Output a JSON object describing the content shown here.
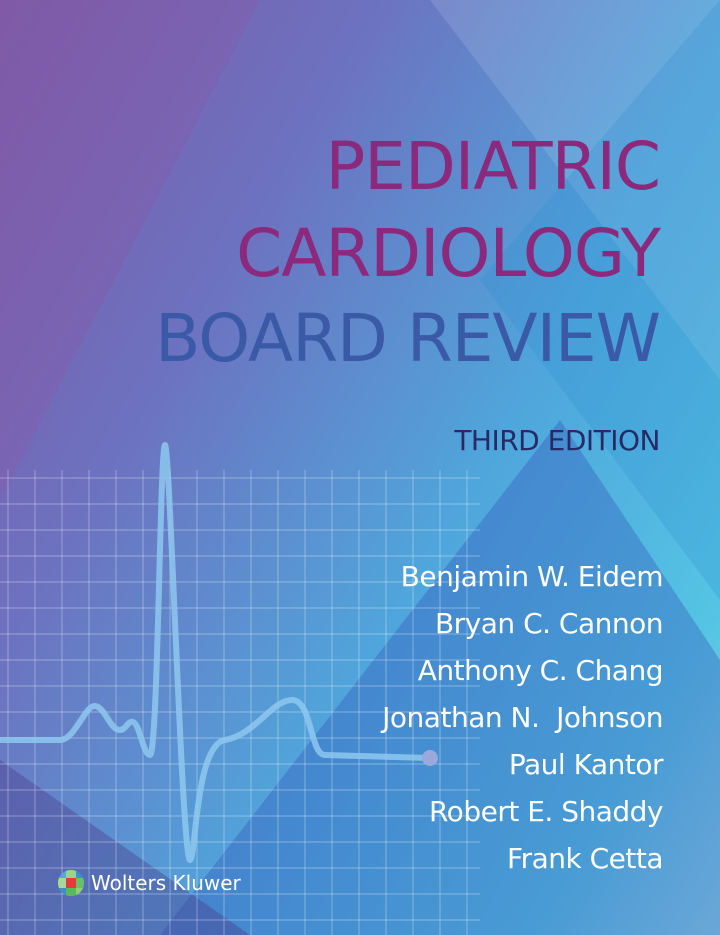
{
  "title": {
    "line1": "PEDIATRIC",
    "line2": "CARDIOLOGY",
    "line3": "BOARD REVIEW"
  },
  "edition": "THIRD EDITION",
  "authors": [
    "Benjamin W. Eidem",
    "Bryan C. Cannon",
    "Anthony C. Chang",
    "Jonathan N.  Johnson",
    "Paul Kantor",
    "Robert E. Shaddy",
    "Frank Cetta"
  ],
  "publisher": {
    "name": "Wolters Kluwer",
    "logo_icon": "wolters-kluwer-logo-icon"
  },
  "colors": {
    "title_magenta": "#8b2a7c",
    "title_blue": "#3a5aa8",
    "edition_navy": "#262a66",
    "author_white": "#ffffff"
  }
}
